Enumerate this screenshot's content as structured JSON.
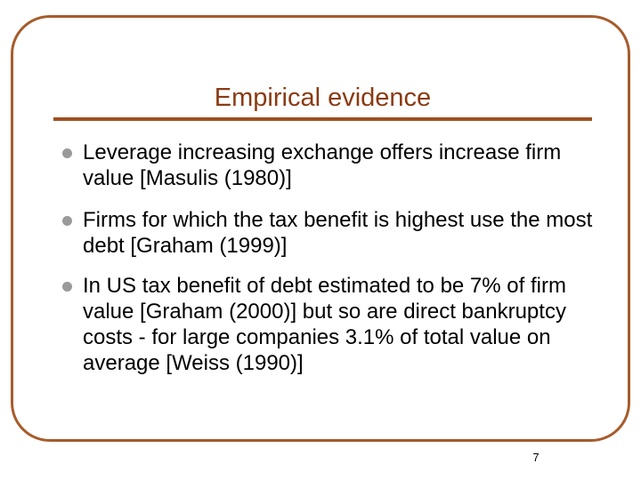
{
  "slide": {
    "title": "Empirical evidence",
    "bullets": [
      {
        "text": "Leverage increasing exchange offers increase firm value [Masulis (1980)]"
      },
      {
        "text": "Firms for which the tax benefit is highest use the most debt [Graham (1999)]"
      },
      {
        "text": "In US tax benefit of debt estimated to be 7% of firm value [Graham (2000)] but so are direct bankruptcy costs - for large companies 3.1% of total value on average [Weiss (1990)]"
      }
    ],
    "page_number": "7"
  },
  "colors": {
    "frame": "#a65c2b",
    "title": "#8a3b12",
    "rule": "#a0501f",
    "bullet_marker": "#9a9a9a",
    "body_text": "#000000"
  }
}
